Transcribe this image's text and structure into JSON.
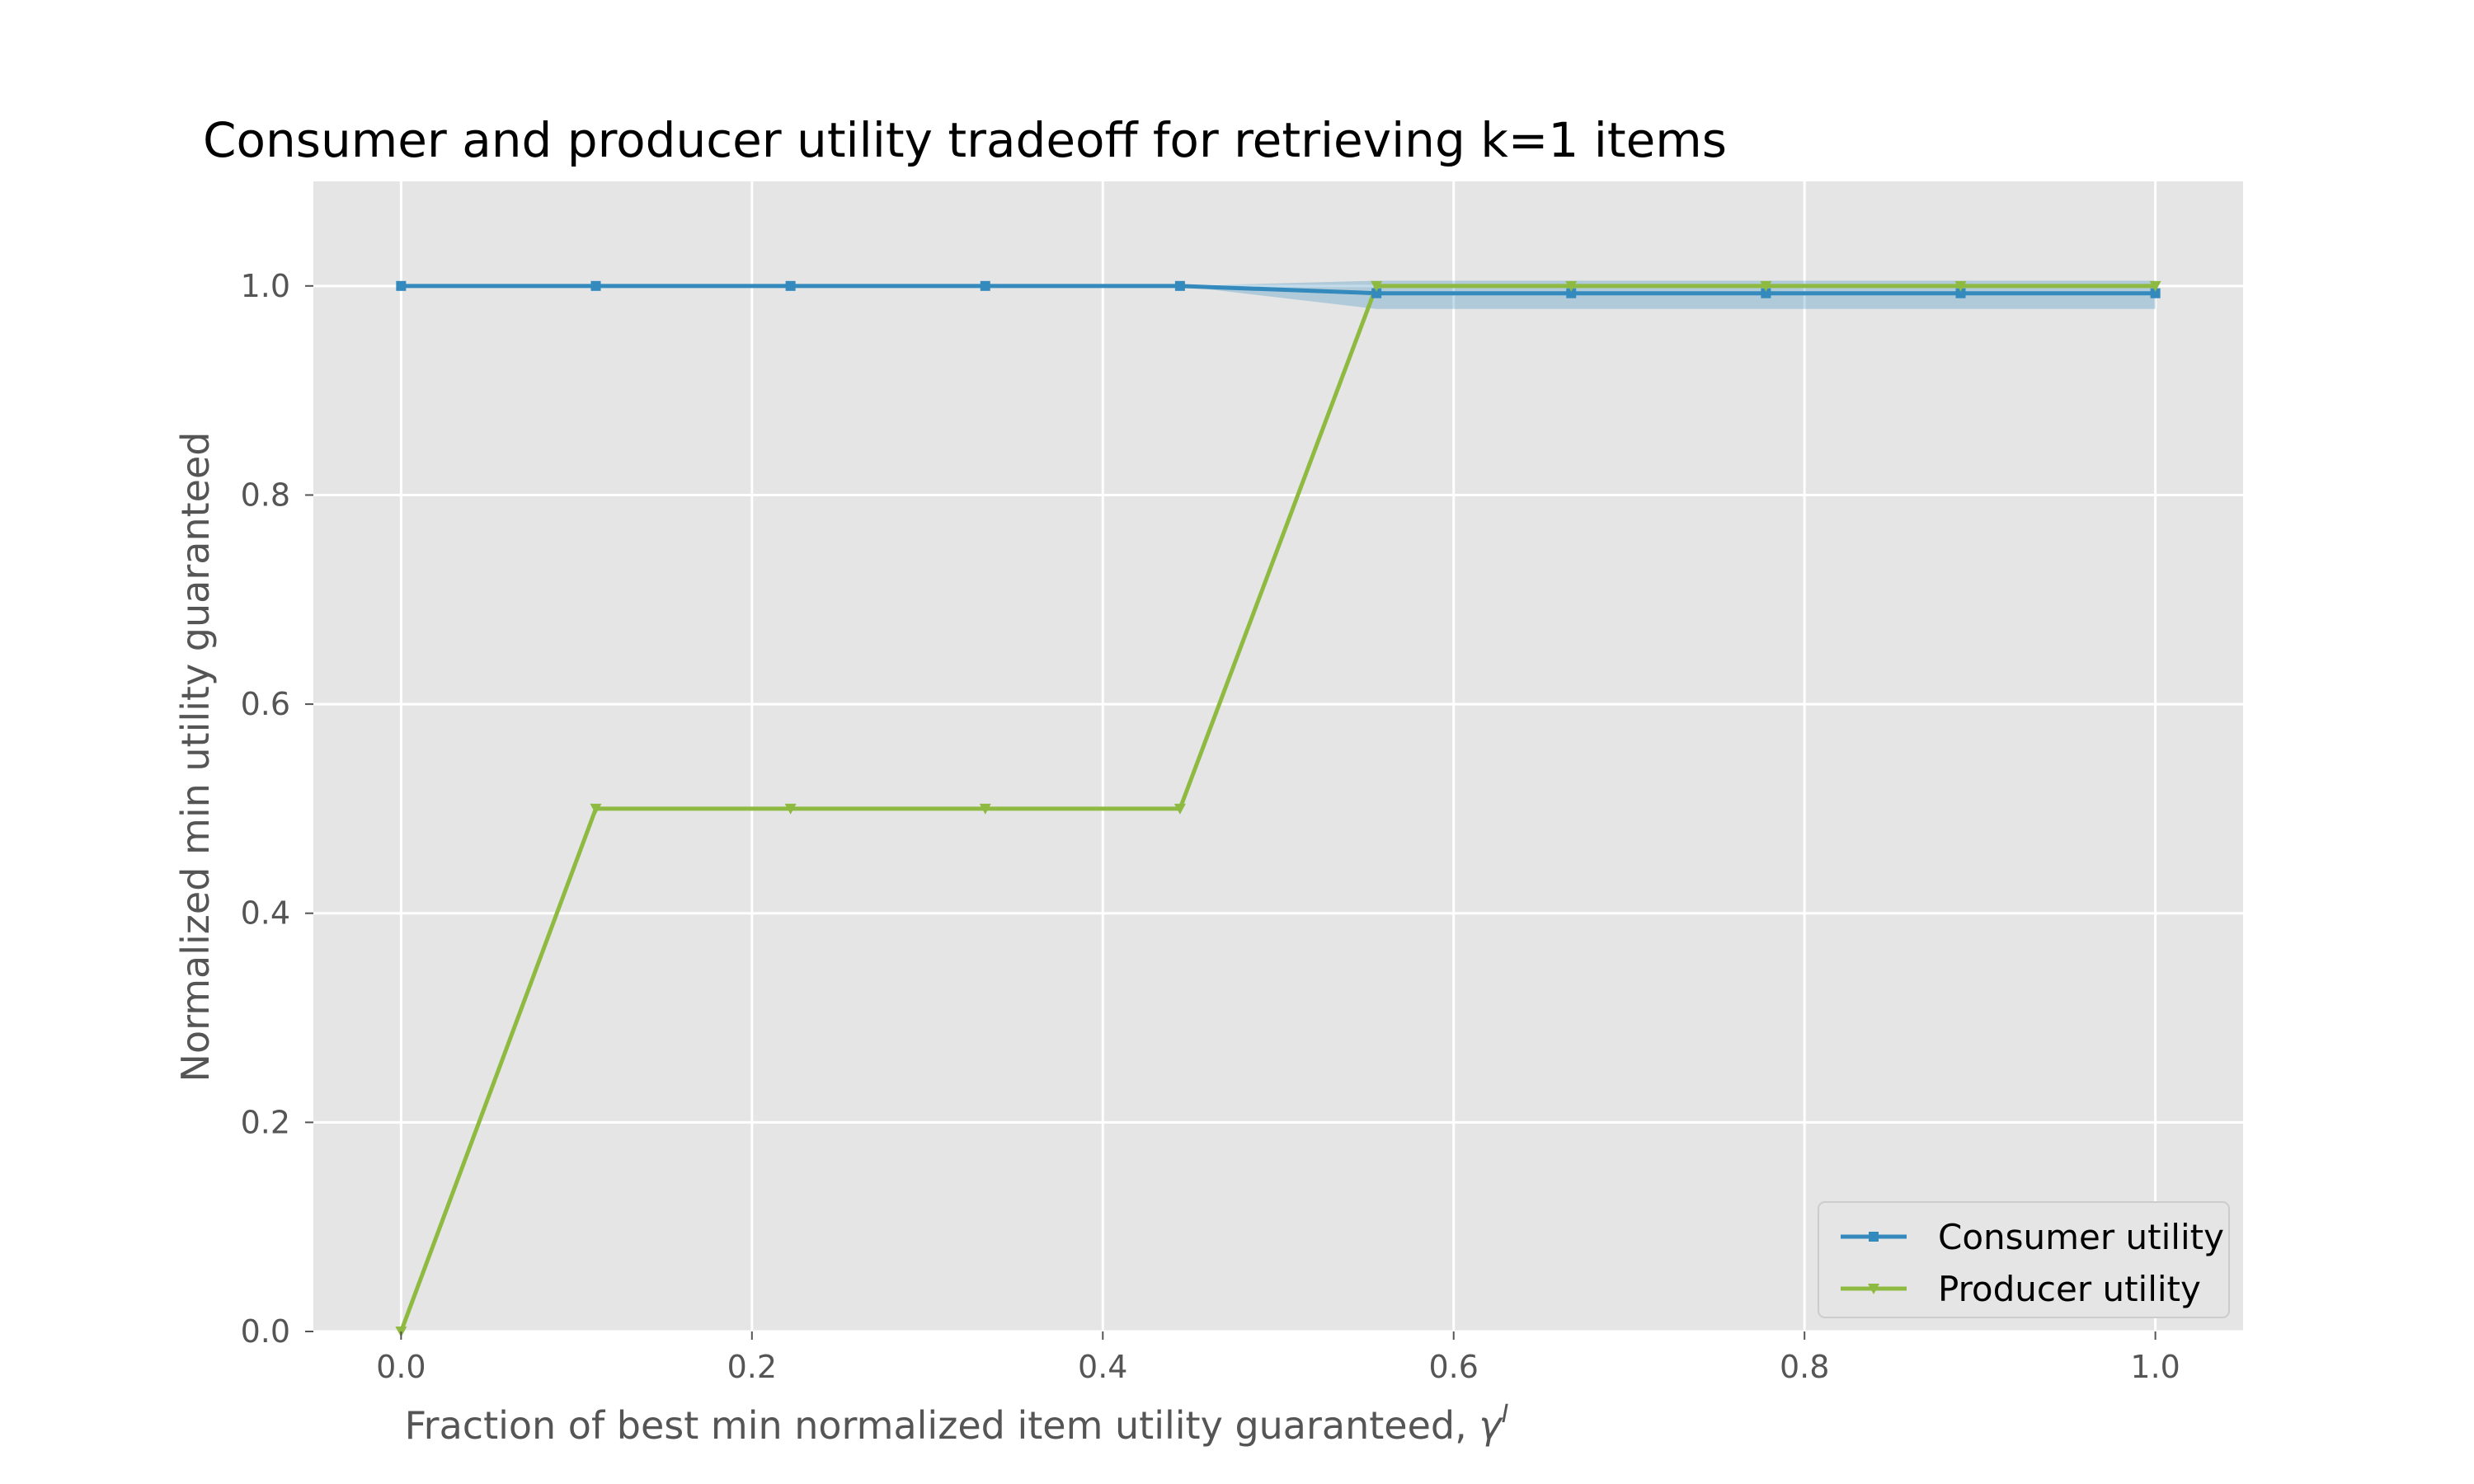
{
  "chart_data": {
    "type": "line",
    "title": "Consumer and producer utility tradeoff for retrieving k=1 items",
    "xlabel": "Fraction of best min normalized item utility guaranteed, ",
    "xlabel_symbol": "γ",
    "xlabel_superscript": "I",
    "ylabel": "Normalized min utility guaranteed",
    "xlim": [
      -0.05,
      1.05
    ],
    "ylim": [
      0.0,
      1.1
    ],
    "xticks": [
      0.0,
      0.2,
      0.4,
      0.6,
      0.8,
      1.0
    ],
    "xtick_labels": [
      "0.0",
      "0.2",
      "0.4",
      "0.6",
      "0.8",
      "1.0"
    ],
    "yticks": [
      0.0,
      0.2,
      0.4,
      0.6,
      0.8,
      1.0
    ],
    "ytick_labels": [
      "0.0",
      "0.2",
      "0.4",
      "0.6",
      "0.8",
      "1.0"
    ],
    "grid": true,
    "background": "#e5e5e5",
    "legend_position": "lower-right",
    "x": [
      0.0,
      0.111,
      0.222,
      0.333,
      0.444,
      0.556,
      0.667,
      0.778,
      0.889,
      1.0
    ],
    "series": [
      {
        "name": "Consumer utility",
        "color": "#348abd",
        "marker": "square",
        "values": [
          1.0,
          1.0,
          1.0,
          1.0,
          1.0,
          0.993,
          0.993,
          0.993,
          0.993,
          0.993
        ],
        "band_low": [
          1.0,
          1.0,
          1.0,
          1.0,
          1.0,
          0.978,
          0.978,
          0.978,
          0.978,
          0.978
        ],
        "band_high": [
          1.0,
          1.0,
          1.0,
          1.0,
          1.0,
          1.005,
          1.005,
          1.005,
          1.005,
          1.005
        ]
      },
      {
        "name": "Producer utility",
        "color": "#8eba42",
        "marker": "triangle-down",
        "values": [
          0.0,
          0.5,
          0.5,
          0.5,
          0.5,
          1.0,
          1.0,
          1.0,
          1.0,
          1.0
        ]
      }
    ]
  }
}
